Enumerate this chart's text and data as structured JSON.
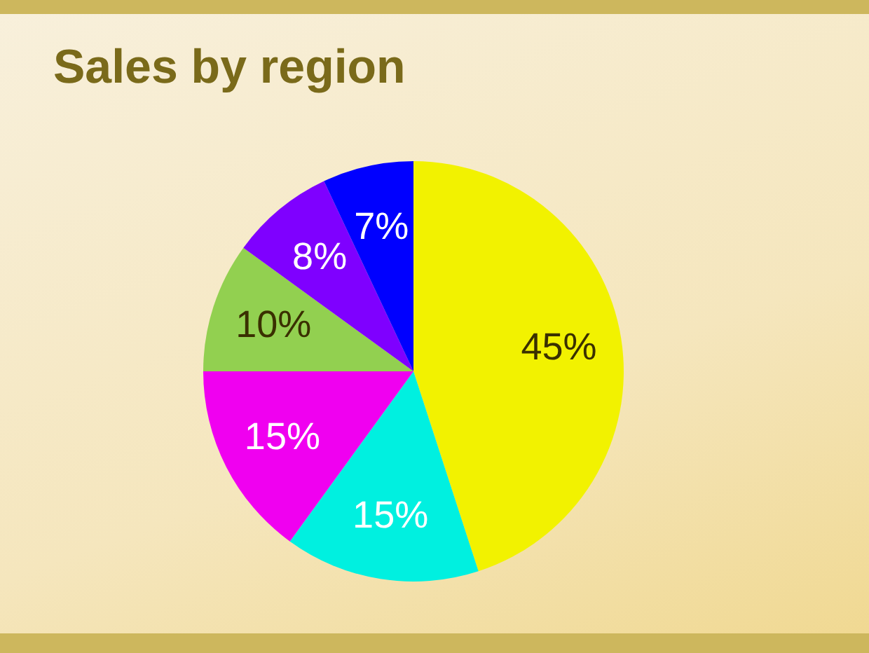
{
  "chart_data": {
    "type": "pie",
    "title": "Sales by region",
    "categories": [
      null,
      null,
      null,
      null,
      null,
      null
    ],
    "values": [
      45,
      15,
      15,
      10,
      8,
      7
    ],
    "value_labels": [
      "45%",
      "15%",
      "15%",
      "10%",
      "8%",
      "7%"
    ],
    "colors": [
      "#f2f200",
      "#00f0e0",
      "#f000f0",
      "#92d050",
      "#7f00ff",
      "#0000ff"
    ],
    "legend": false
  }
}
